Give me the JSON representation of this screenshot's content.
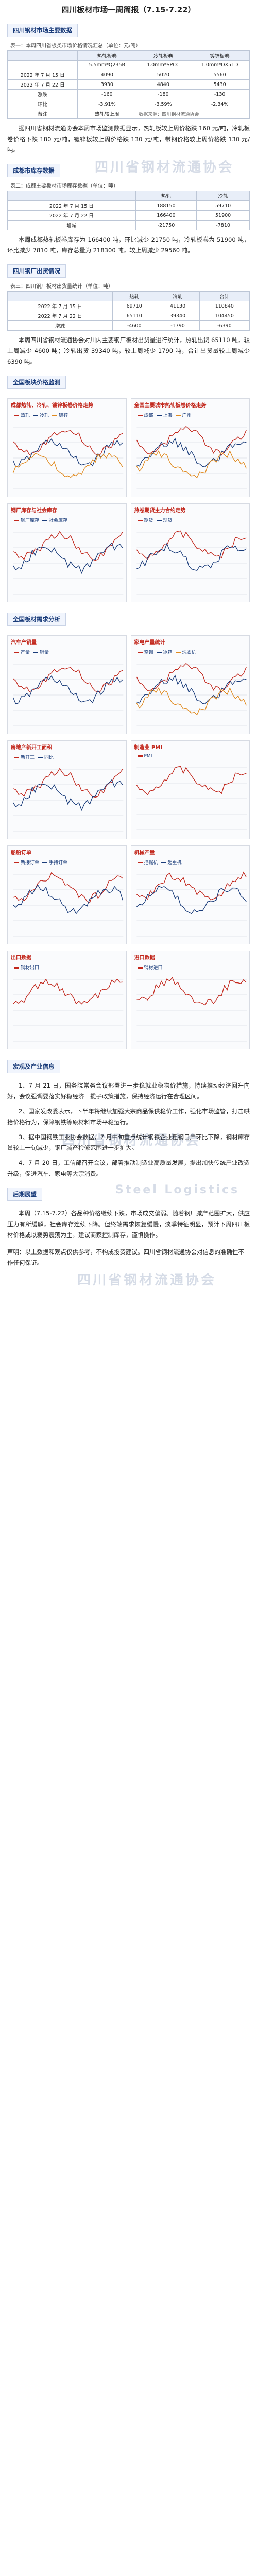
{
  "title": "四川板材市场一周简报（7.15-7.22）",
  "watermark": "四川省钢材流通协会",
  "watermark_en": "Steel Logistics",
  "sec1": {
    "head": "四川钢材市场主要数据",
    "caption": "表一：本周四川省板类市场价格情况汇总（单位：元/吨）",
    "cols": [
      "",
      "热轧板卷",
      "冷轧板卷",
      "镀锌板卷"
    ],
    "spec_row": [
      "",
      "5.5mm*Q235B",
      "1.0mm*SPCC",
      "1.0mm*DX51D"
    ],
    "rows": [
      [
        "2022 年 7 月 15 日",
        "4090",
        "5020",
        "5560"
      ],
      [
        "2022 年 7 月 22 日",
        "3930",
        "4840",
        "5430"
      ],
      [
        "涨跌",
        "-160",
        "-180",
        "-130"
      ],
      [
        "环比",
        "-3.91%",
        "-3.59%",
        "-2.34%"
      ],
      [
        "备注",
        "热轧较上周",
        "数据来源：四川钢材流通协会",
        ""
      ]
    ]
  },
  "para1": "据四川省钢材流通协会本周市场监测数据显示，热轧板较上周价格跌 160 元/吨，冷轧板卷价格下跌 180 元/吨，镀锌板较上周价格跌 130 元/吨，带钢价格较上周价格跌 130 元/吨。",
  "sec2": {
    "head": "成都市库存数据",
    "caption": "表二：成都主要板材市场库存数据（单位：吨）",
    "cols": [
      "",
      "热轧",
      "冷轧"
    ],
    "rows": [
      [
        "2022 年 7 月 15 日",
        "188150",
        "59710"
      ],
      [
        "2022 年 7 月 22 日",
        "166400",
        "51900"
      ],
      [
        "增减",
        "-21750",
        "-7810"
      ]
    ]
  },
  "para2": "本周成都热轧板卷库存为 166400 吨，环比减少 21750 吨，冷轧板卷为 51900 吨，环比减少 7810 吨，库存总量为 218300 吨，较上周减少 29560 吨。",
  "sec3": {
    "head": "四川钢厂出货情况",
    "caption": "表三：四川钢厂板材出货量统计（单位：吨）",
    "cols": [
      "",
      "热轧",
      "冷轧",
      "合计"
    ],
    "rows": [
      [
        "2022 年 7 月 15 日",
        "69710",
        "41130",
        "110840"
      ],
      [
        "2022 年 7 月 22 日",
        "65110",
        "39340",
        "104450"
      ],
      [
        "增减",
        "-4600",
        "-1790",
        "-6390"
      ]
    ]
  },
  "para3": "本周四川省钢材流通协会对川内主要钢厂板材出货量进行统计，热轧出货 65110 吨，较上周减少 4600 吨；冷轧出货 39340 吨，较上周减少 1790 吨，合计出货量较上周减少 6390 吨。",
  "sec4": {
    "head": "全国板块价格监测",
    "panels": [
      {
        "title": "成都热轧、冷轧、镀锌板卷价格走势",
        "legend": [
          "热轧",
          "冷轧",
          "镀锌"
        ]
      },
      {
        "title": "全国主要城市热轧板卷价格走势",
        "legend": [
          "成都",
          "上海",
          "广州"
        ]
      },
      {
        "title": "钢厂库存与社会库存",
        "legend": [
          "钢厂库存",
          "社会库存"
        ]
      },
      {
        "title": "热卷期货主力合约走势",
        "legend": [
          "期货",
          "现货"
        ]
      }
    ]
  },
  "sec5": {
    "head": "全国板材需求分析",
    "panels": [
      {
        "title": "汽车产销量",
        "legend": [
          "产量",
          "销量"
        ]
      },
      {
        "title": "家电产量统计",
        "legend": [
          "空调",
          "冰箱",
          "洗衣机"
        ]
      },
      {
        "title": "房地产新开工面积",
        "legend": [
          "新开工",
          "同比"
        ]
      },
      {
        "title": "制造业 PMI",
        "legend": [
          "PMI"
        ]
      },
      {
        "title": "船舶订单",
        "legend": [
          "新接订单",
          "手持订单"
        ]
      },
      {
        "title": "机械产量",
        "legend": [
          "挖掘机",
          "起重机"
        ]
      },
      {
        "title": "出口数据",
        "legend": [
          "钢材出口"
        ]
      },
      {
        "title": "进口数据",
        "legend": [
          "钢材进口"
        ]
      }
    ]
  },
  "sec6": {
    "head": "宏观及产业信息",
    "items": [
      "1、7 月 21 日，国务院常务会议部署进一步稳就业稳物价措施，持续推动经济回升向好，会议强调要落实好稳经济一揽子政策措施，保持经济运行在合理区间。",
      "2、国家发改委表示，下半年将继续加强大宗商品保供稳价工作，强化市场监管，打击哄抬价格行为，保障钢铁等原材料市场平稳运行。",
      "3、据中国钢铁工业协会数据，7 月中旬重点统计钢铁企业粗钢日产环比下降，钢材库存量较上一旬减少，钢厂减产检修范围进一步扩大。",
      "4、7 月 20 日，工信部召开会议，部署推动制造业高质量发展，提出加快传统产业改造升级，促进汽车、家电等大宗消费。"
    ]
  },
  "sec7": {
    "head": "后期展望",
    "text": "本周（7.15-7.22）各品种价格继续下跌，市场成交偏弱。随着钢厂减产范围扩大，供应压力有所缓解，社会库存连续下降。但终端需求恢复缓慢，淡季特征明显，预计下周四川板材价格或以弱势震荡为主，建议商家控制库存，谨慎操作。"
  },
  "footer": "声明：以上数据和观点仅供参考，不构成投资建议。四川省钢材流通协会对信息的准确性不作任何保证。"
}
